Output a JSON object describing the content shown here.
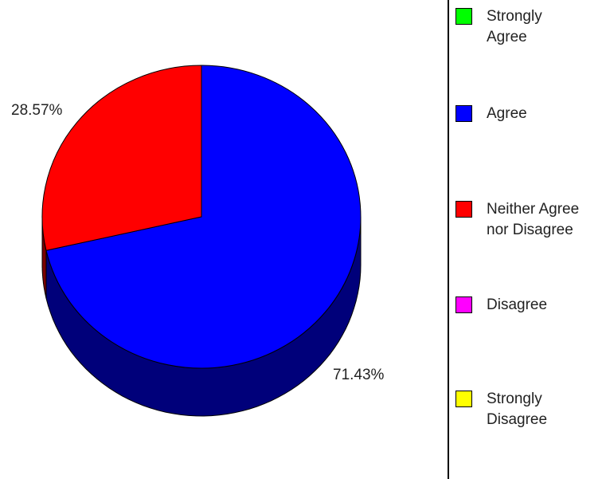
{
  "chart_data": {
    "type": "pie",
    "style": "3d",
    "categories": [
      "Strongly Agree",
      "Agree",
      "Neither Agree nor Disagree",
      "Disagree",
      "Strongly Disagree"
    ],
    "values": [
      0,
      71.43,
      28.57,
      0,
      0
    ],
    "value_labels": [
      "",
      "71.43%",
      "28.57%",
      "",
      ""
    ],
    "colors": [
      "#00ff00",
      "#0000ff",
      "#ff0000",
      "#ff00ff",
      "#ffff00"
    ],
    "side_colors": [
      "#008000",
      "#00007a",
      "#7a0000",
      "#800080",
      "#808000"
    ],
    "legend_position": "right",
    "title": ""
  },
  "legend": {
    "items": [
      {
        "label": "Strongly\nAgree",
        "color": "#00ff00"
      },
      {
        "label": "Agree",
        "color": "#0000ff"
      },
      {
        "label": "Neither Agree\nnor Disagree",
        "color": "#ff0000"
      },
      {
        "label": "Disagree",
        "color": "#ff00ff"
      },
      {
        "label": "Strongly\nDisagree",
        "color": "#ffff00"
      }
    ]
  }
}
